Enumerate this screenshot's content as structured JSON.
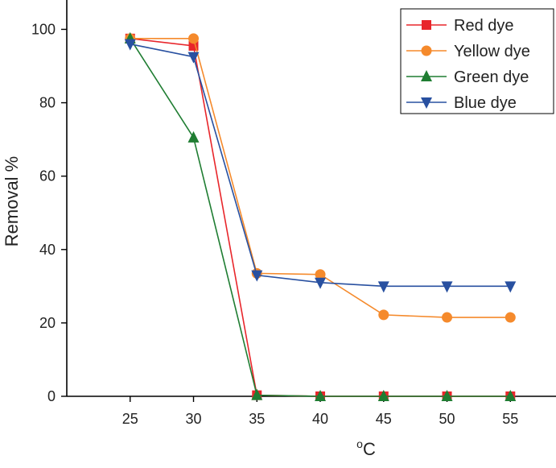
{
  "chart_data": {
    "type": "line",
    "title": "",
    "xlabel_sup": "o",
    "xlabel_main": "C",
    "ylabel": "Removal %",
    "x": [
      25,
      30,
      35,
      40,
      45,
      50,
      55
    ],
    "x_ticks": [
      "25",
      "30",
      "35",
      "40",
      "45",
      "50",
      "55"
    ],
    "y_ticks": [
      "0",
      "20",
      "40",
      "60",
      "80",
      "100"
    ],
    "xlim": [
      20,
      58.6
    ],
    "ylim": [
      0,
      108
    ],
    "grid": false,
    "legend_position": "top-right",
    "series": [
      {
        "name": "Red dye",
        "color": "#e8262b",
        "marker": "square",
        "values": [
          97.5,
          95.5,
          0.3,
          0,
          0,
          0,
          0
        ]
      },
      {
        "name": "Yellow dye",
        "color": "#f58a2c",
        "marker": "circle",
        "values": [
          97.5,
          97.5,
          33.5,
          33.2,
          22.2,
          21.5,
          21.5
        ]
      },
      {
        "name": "Green dye",
        "color": "#1f7d32",
        "marker": "triangle-up",
        "values": [
          97.5,
          70.5,
          0.3,
          0,
          0,
          0,
          0
        ]
      },
      {
        "name": "Blue dye",
        "color": "#2850a0",
        "marker": "triangle-down",
        "values": [
          96,
          92.5,
          33,
          31,
          30,
          30,
          30
        ]
      }
    ]
  }
}
